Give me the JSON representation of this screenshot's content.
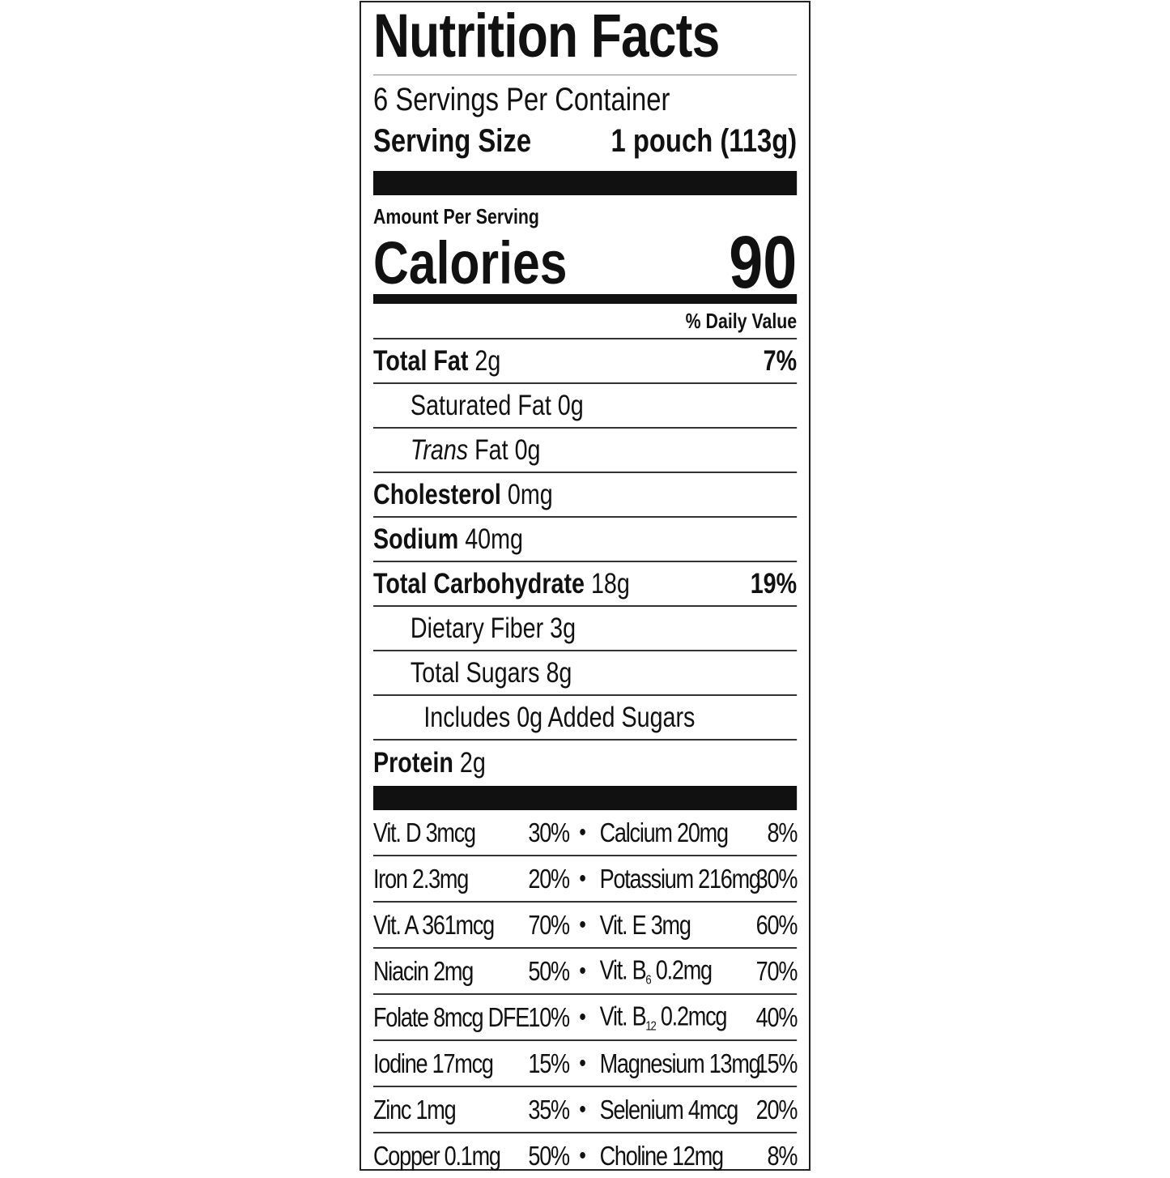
{
  "title": "Nutrition Facts",
  "servings_per_container": "6 Servings Per Container",
  "serving_size": {
    "label": "Serving Size",
    "value": "1 pouch (113g)"
  },
  "amount_per_serving": "Amount Per Serving",
  "calories": {
    "label": "Calories",
    "value": "90"
  },
  "daily_value_header": "% Daily Value",
  "nutrients": [
    {
      "name": "Total Fat",
      "amount": "2g",
      "dv": "7%"
    },
    {
      "name": "Saturated Fat",
      "amount": "0g",
      "dv": ""
    },
    {
      "name": "Trans",
      "name_rest": "Fat",
      "amount": "0g",
      "dv": ""
    },
    {
      "name": "Cholesterol",
      "amount": "0mg",
      "dv": ""
    },
    {
      "name": "Sodium",
      "amount": "40mg",
      "dv": ""
    },
    {
      "name": "Total Carbohydrate",
      "amount": "18g",
      "dv": "19%"
    },
    {
      "name": "Dietary Fiber",
      "amount": "3g",
      "dv": ""
    },
    {
      "name": "Total Sugars",
      "amount": "8g",
      "dv": ""
    },
    {
      "name": "Includes 0g Added Sugars",
      "amount": "",
      "dv": ""
    },
    {
      "name": "Protein",
      "amount": "2g",
      "dv": ""
    }
  ],
  "vitamins": [
    {
      "left": "Vit. D 3mcg",
      "left_dv": "30%",
      "right": "Calcium 20mg",
      "right_dv": "8%"
    },
    {
      "left": "Iron 2.3mg",
      "left_dv": "20%",
      "right": "Potassium 216mg",
      "right_dv": "30%"
    },
    {
      "left": "Vit. A 361mcg",
      "left_dv": "70%",
      "right": "Vit. E 3mg",
      "right_dv": "60%"
    },
    {
      "left": "Niacin 2mg",
      "left_dv": "50%",
      "right_pre": "Vit. B",
      "right_sub": "6",
      "right_post": " 0.2mg",
      "right_dv": "70%"
    },
    {
      "left": "Folate 8mcg DFE",
      "left_dv": "10%",
      "right_pre": "Vit. B",
      "right_sub": "12",
      "right_post": " 0.2mcg",
      "right_dv": "40%"
    },
    {
      "left": "Iodine 17mcg",
      "left_dv": "15%",
      "right": "Magnesium 13mg",
      "right_dv": "15%"
    },
    {
      "left": "Zinc 1mg",
      "left_dv": "35%",
      "right": "Selenium 4mcg",
      "right_dv": "20%"
    },
    {
      "left": "Copper 0.1mg",
      "left_dv": "50%",
      "right": "Choline 12mg",
      "right_dv": "8%"
    }
  ],
  "bullet": "•"
}
